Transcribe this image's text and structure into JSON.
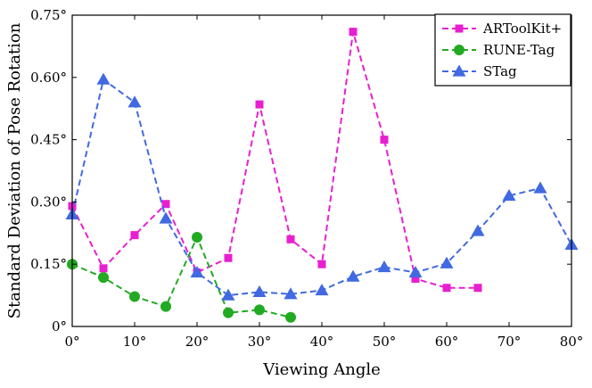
{
  "chart_data": {
    "type": "line",
    "xlabel": "Viewing Angle",
    "ylabel": "Standard Deviation of Pose Rotation",
    "xlim": [
      0,
      80
    ],
    "ylim": [
      0,
      0.75
    ],
    "x_ticks": [
      0,
      10,
      20,
      30,
      40,
      50,
      60,
      70,
      80
    ],
    "y_ticks": [
      0,
      0.15,
      0.3,
      0.45,
      0.6,
      0.75
    ],
    "x_tick_labels": [
      "0°",
      "10°",
      "20°",
      "30°",
      "40°",
      "50°",
      "60°",
      "70°",
      "80°"
    ],
    "y_tick_labels": [
      "0°",
      "0.15°",
      "0.30°",
      "0.45°",
      "0.60°",
      "0.75°"
    ],
    "grid": false,
    "legend_position": "top-right",
    "series": [
      {
        "name": "ARToolKit+",
        "color": "#e81fd0",
        "marker": "square",
        "line_style": "dashed",
        "x": [
          0,
          5,
          10,
          15,
          20,
          25,
          30,
          35,
          40,
          45,
          50,
          55,
          60,
          65
        ],
        "y": [
          0.29,
          0.14,
          0.22,
          0.295,
          0.13,
          0.165,
          0.535,
          0.21,
          0.15,
          0.71,
          0.45,
          0.115,
          0.093,
          0.093
        ]
      },
      {
        "name": "RUNE-Tag",
        "color": "#22aa22",
        "marker": "circle",
        "line_style": "dashed",
        "x": [
          0,
          5,
          10,
          15,
          20,
          25,
          30,
          35
        ],
        "y": [
          0.15,
          0.118,
          0.072,
          0.048,
          0.215,
          0.033,
          0.04,
          0.022
        ]
      },
      {
        "name": "STag",
        "color": "#4169e1",
        "marker": "triangle",
        "line_style": "dashed",
        "x": [
          0,
          5,
          10,
          15,
          20,
          25,
          30,
          35,
          40,
          45,
          50,
          55,
          60,
          65,
          70,
          75,
          80
        ],
        "y": [
          0.27,
          0.595,
          0.54,
          0.26,
          0.13,
          0.075,
          0.083,
          0.078,
          0.087,
          0.12,
          0.143,
          0.13,
          0.152,
          0.23,
          0.315,
          0.333,
          0.197
        ]
      }
    ]
  }
}
